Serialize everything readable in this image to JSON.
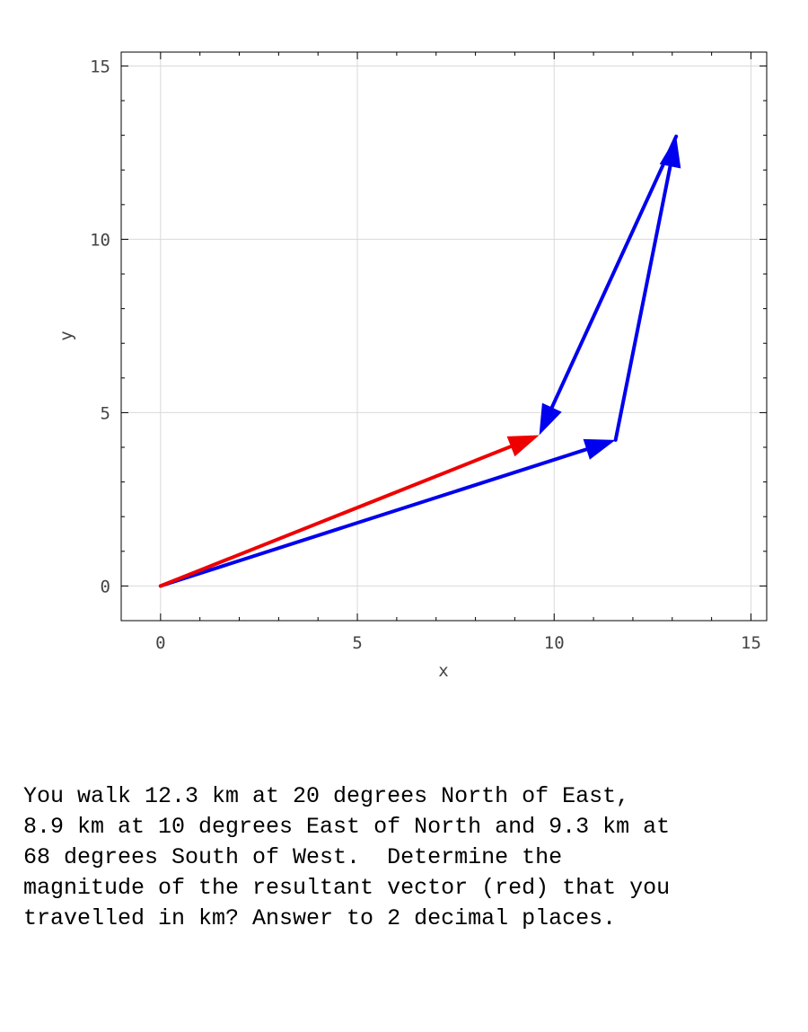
{
  "chart_data": {
    "type": "line",
    "title": "",
    "xlabel": "x",
    "ylabel": "y",
    "xlim": [
      -1,
      15.4
    ],
    "ylim": [
      -1,
      15.4
    ],
    "xticks": [
      0,
      5,
      10,
      15
    ],
    "yticks": [
      0,
      5,
      10,
      15
    ],
    "grid": true,
    "series": [
      {
        "color": "#0000ee",
        "segments": [
          {
            "x": [
              0,
              11.56
            ],
            "y": [
              0,
              4.21
            ]
          },
          {
            "x": [
              11.56,
              13.1
            ],
            "y": [
              4.21,
              12.97
            ]
          },
          {
            "x": [
              13.1,
              9.62
            ],
            "y": [
              12.97,
              4.35
            ]
          }
        ]
      },
      {
        "color": "#ee0000",
        "segments": [
          {
            "x": [
              0,
              9.62
            ],
            "y": [
              0,
              4.35
            ]
          }
        ]
      }
    ]
  },
  "question": {
    "lines": [
      "You walk 12.3 km at 20 degrees North of East,",
      "8.9 km at 10 degrees East of North and 9.3 km at",
      "68 degrees South of West.  Determine the",
      "magnitude of the resultant vector (red) that you",
      "travelled in km? Answer to 2 decimal places."
    ]
  }
}
